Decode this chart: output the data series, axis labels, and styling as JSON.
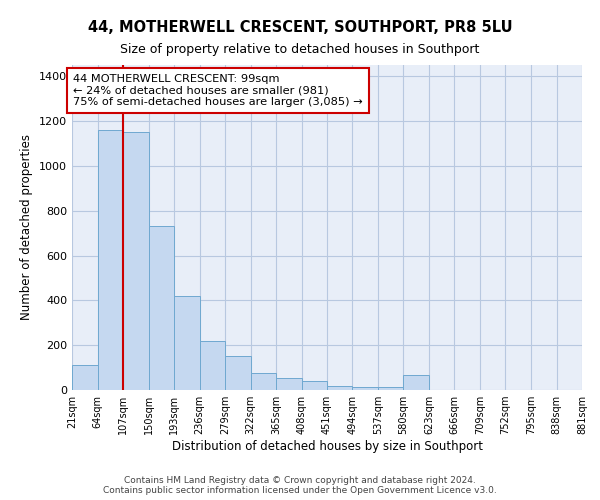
{
  "title": "44, MOTHERWELL CRESCENT, SOUTHPORT, PR8 5LU",
  "subtitle": "Size of property relative to detached houses in Southport",
  "xlabel": "Distribution of detached houses by size in Southport",
  "ylabel": "Number of detached properties",
  "bar_color": "#c5d8f0",
  "bar_edge_color": "#6fa8d0",
  "background_color": "#e8eef8",
  "grid_color": "#b8c8e0",
  "bin_edges": [
    21,
    64,
    107,
    150,
    193,
    236,
    279,
    322,
    365,
    408,
    451,
    494,
    537,
    580,
    623,
    666,
    709,
    752,
    795,
    838,
    881
  ],
  "bar_heights": [
    110,
    1160,
    1150,
    730,
    420,
    220,
    150,
    75,
    55,
    40,
    20,
    15,
    15,
    65,
    0,
    0,
    0,
    0,
    0,
    0
  ],
  "red_line_x": 107,
  "annotation_text": "44 MOTHERWELL CRESCENT: 99sqm\n← 24% of detached houses are smaller (981)\n75% of semi-detached houses are larger (3,085) →",
  "annotation_box_color": "#ffffff",
  "annotation_border_color": "#cc0000",
  "ylim": [
    0,
    1450
  ],
  "yticks": [
    0,
    200,
    400,
    600,
    800,
    1000,
    1200,
    1400
  ],
  "footer": "Contains HM Land Registry data © Crown copyright and database right 2024.\nContains public sector information licensed under the Open Government Licence v3.0."
}
